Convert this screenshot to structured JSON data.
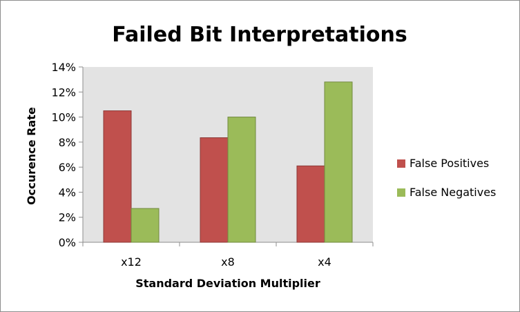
{
  "chart_data": {
    "type": "bar",
    "title": "Failed Bit Interpretations",
    "xlabel": "Standard Deviation Multiplier",
    "ylabel": "Occurence Rate",
    "categories": [
      "x12",
      "x8",
      "x4"
    ],
    "series": [
      {
        "name": "False Positives",
        "values": [
          10.5,
          8.35,
          6.1
        ],
        "color": "#c0504d"
      },
      {
        "name": "False Negatives",
        "values": [
          2.7,
          10.0,
          12.8
        ],
        "color": "#9bbb59"
      }
    ],
    "ylim": [
      0,
      14
    ],
    "yticks": [
      "0%",
      "2%",
      "4%",
      "6%",
      "8%",
      "10%",
      "12%",
      "14%"
    ],
    "plot_background": "#e3e3e3",
    "grid": true,
    "legend_position": "right"
  }
}
